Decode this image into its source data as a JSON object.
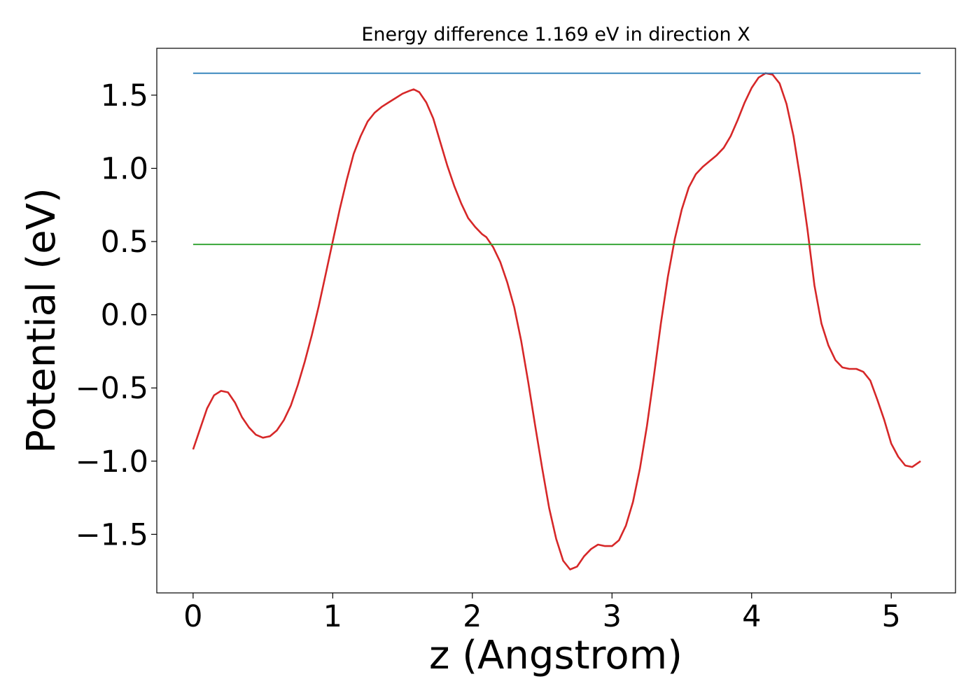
{
  "chart_data": {
    "type": "line",
    "title": "Energy difference 1.169 eV in direction X",
    "xlabel": "z (Angstrom)",
    "ylabel": "Potential (eV)",
    "xlim": [
      -0.26,
      5.46
    ],
    "ylim": [
      -1.9,
      1.82
    ],
    "xticks": [
      0,
      1,
      2,
      3,
      4,
      5
    ],
    "xtick_labels": [
      "0",
      "1",
      "2",
      "3",
      "4",
      "5"
    ],
    "yticks": [
      -1.5,
      -1.0,
      -0.5,
      0.0,
      0.5,
      1.0,
      1.5
    ],
    "ytick_labels": [
      "−1.5",
      "−1.0",
      "−0.5",
      "0.0",
      "0.5",
      "1.0",
      "1.5"
    ],
    "grid": false,
    "series": [
      {
        "color": "#d62728",
        "x": [
          0.0,
          0.05,
          0.1,
          0.15,
          0.2,
          0.25,
          0.3,
          0.35,
          0.4,
          0.45,
          0.5,
          0.55,
          0.6,
          0.65,
          0.7,
          0.75,
          0.8,
          0.85,
          0.9,
          0.95,
          1.0,
          1.05,
          1.1,
          1.15,
          1.2,
          1.25,
          1.3,
          1.35,
          1.4,
          1.45,
          1.5,
          1.55,
          1.58,
          1.62,
          1.67,
          1.72,
          1.77,
          1.82,
          1.87,
          1.92,
          1.97,
          2.02,
          2.07,
          2.1,
          2.15,
          2.2,
          2.25,
          2.3,
          2.35,
          2.4,
          2.45,
          2.5,
          2.55,
          2.6,
          2.65,
          2.7,
          2.75,
          2.8,
          2.85,
          2.9,
          2.95,
          3.0,
          3.05,
          3.1,
          3.15,
          3.2,
          3.25,
          3.3,
          3.35,
          3.4,
          3.45,
          3.5,
          3.55,
          3.6,
          3.65,
          3.7,
          3.75,
          3.8,
          3.85,
          3.9,
          3.95,
          4.0,
          4.05,
          4.1,
          4.15,
          4.2,
          4.25,
          4.3,
          4.35,
          4.4,
          4.45,
          4.5,
          4.55,
          4.6,
          4.65,
          4.7,
          4.75,
          4.8,
          4.85,
          4.9,
          4.95,
          5.0,
          5.05,
          5.1,
          5.15,
          5.21
        ],
        "y": [
          -0.92,
          -0.78,
          -0.64,
          -0.55,
          -0.52,
          -0.53,
          -0.6,
          -0.7,
          -0.77,
          -0.82,
          -0.84,
          -0.83,
          -0.79,
          -0.72,
          -0.62,
          -0.48,
          -0.32,
          -0.14,
          0.06,
          0.28,
          0.5,
          0.72,
          0.92,
          1.1,
          1.22,
          1.32,
          1.38,
          1.42,
          1.45,
          1.48,
          1.51,
          1.53,
          1.54,
          1.52,
          1.45,
          1.34,
          1.18,
          1.02,
          0.88,
          0.76,
          0.66,
          0.6,
          0.55,
          0.53,
          0.46,
          0.36,
          0.22,
          0.05,
          -0.18,
          -0.46,
          -0.76,
          -1.05,
          -1.32,
          -1.53,
          -1.68,
          -1.74,
          -1.72,
          -1.65,
          -1.6,
          -1.57,
          -1.58,
          -1.58,
          -1.54,
          -1.44,
          -1.28,
          -1.05,
          -0.76,
          -0.42,
          -0.06,
          0.26,
          0.52,
          0.72,
          0.87,
          0.96,
          1.01,
          1.05,
          1.09,
          1.14,
          1.22,
          1.33,
          1.45,
          1.55,
          1.62,
          1.65,
          1.64,
          1.58,
          1.44,
          1.22,
          0.92,
          0.58,
          0.2,
          -0.06,
          -0.21,
          -0.31,
          -0.36,
          -0.37,
          -0.37,
          -0.39,
          -0.45,
          -0.58,
          -0.72,
          -0.88,
          -0.97,
          -1.03,
          -1.04,
          -1.0
        ]
      },
      {
        "color": "#1f77b4",
        "x": [
          0.0,
          5.21
        ],
        "y": [
          1.65,
          1.65
        ]
      },
      {
        "color": "#2ca02c",
        "x": [
          0.0,
          5.21
        ],
        "y": [
          0.48,
          0.48
        ]
      }
    ]
  }
}
